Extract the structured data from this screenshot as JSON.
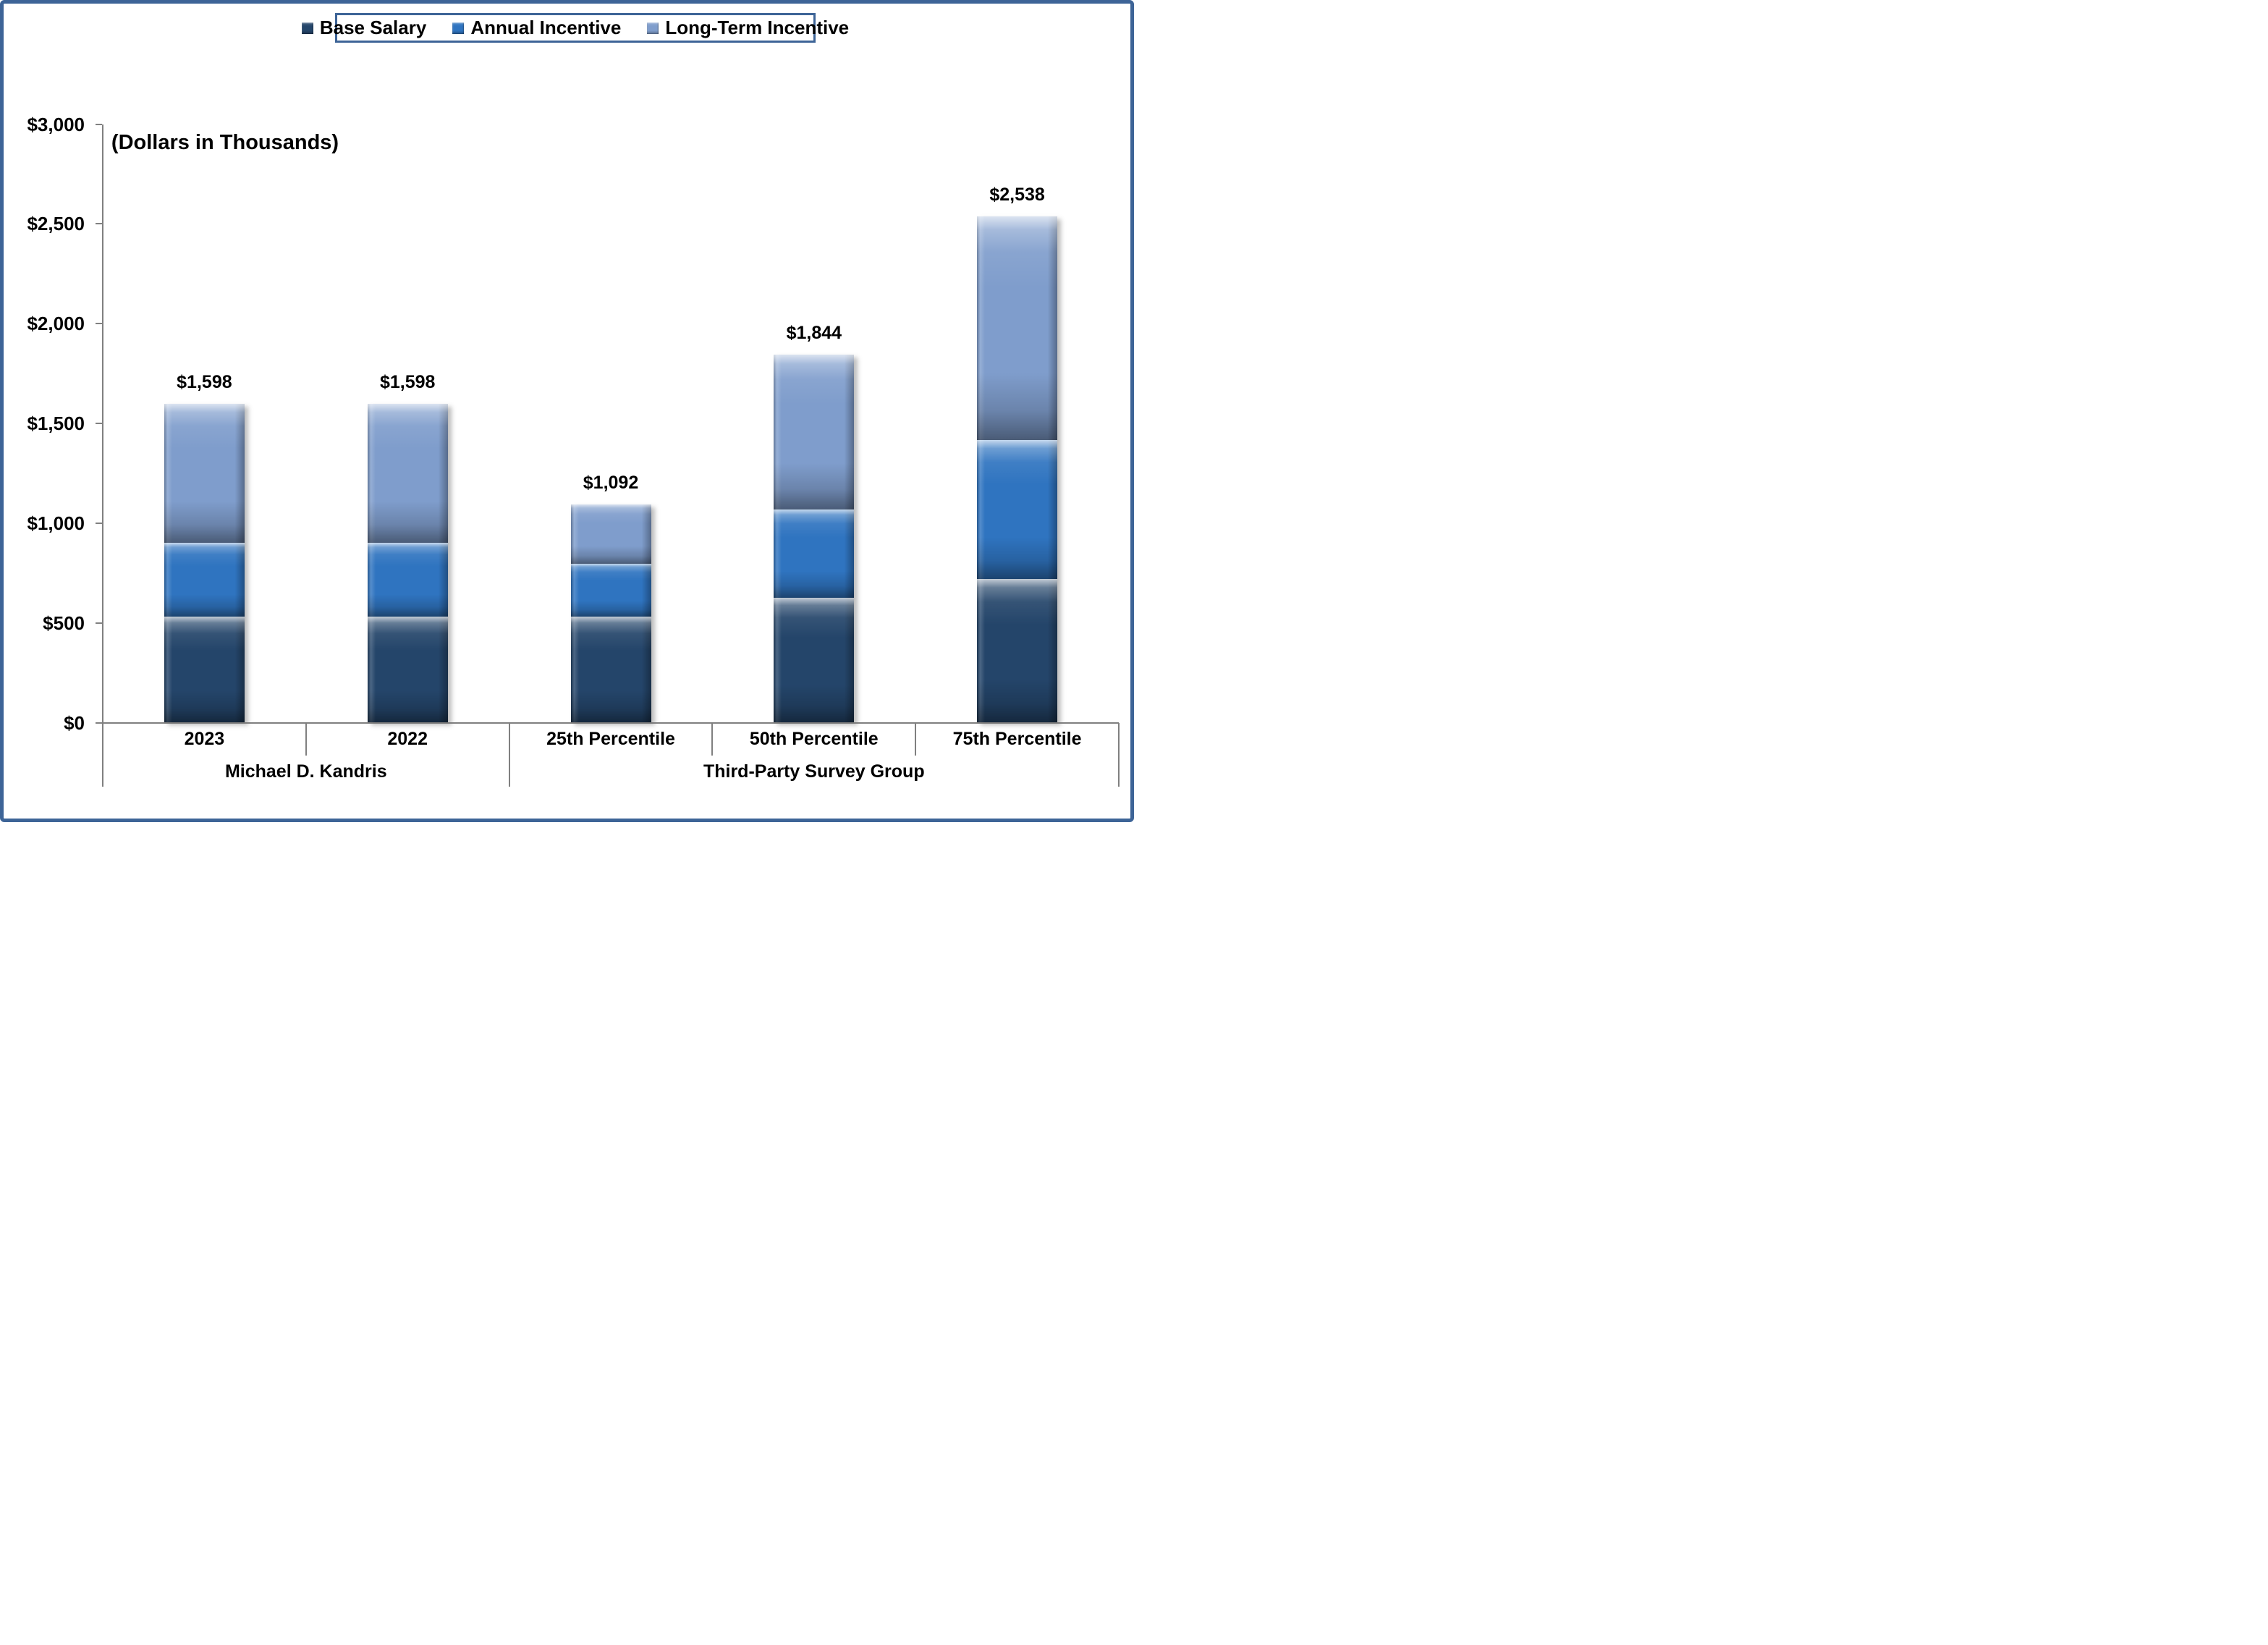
{
  "page": {
    "frame_color": "#3D6497",
    "axis_color": "#808080"
  },
  "chart_data": {
    "type": "bar",
    "stacked": true,
    "title": "",
    "units_note": "(Dollars in Thousands)",
    "legend_position": "top",
    "gridlines": false,
    "categories": [
      "2023",
      "2022",
      "25th Percentile",
      "50th Percentile",
      "75th Percentile"
    ],
    "category_groups": [
      {
        "label": "Michael D. Kandris",
        "span": 2
      },
      {
        "label": "Third-Party Survey Group",
        "span": 3
      }
    ],
    "series": [
      {
        "name": "Base Salary",
        "color": "#24456A",
        "values": [
          530,
          530,
          530,
          624,
          720
        ]
      },
      {
        "name": "Annual Incentive",
        "color": "#2F74C0",
        "values": [
          373,
          373,
          266,
          444,
          698
        ]
      },
      {
        "name": "Long-Term Incentive",
        "color": "#7F9DCC",
        "values": [
          695,
          695,
          296,
          776,
          1120
        ]
      }
    ],
    "totals": [
      1598,
      1598,
      1092,
      1844,
      2538
    ],
    "total_labels": [
      "$1,598",
      "$1,598",
      "$1,092",
      "$1,844",
      "$2,538"
    ],
    "y_axis": {
      "min": 0,
      "max": 3000,
      "step": 500,
      "tick_labels": [
        "$0",
        "$500",
        "$1,000",
        "$1,500",
        "$2,000",
        "$2,500",
        "$3,000"
      ]
    }
  }
}
